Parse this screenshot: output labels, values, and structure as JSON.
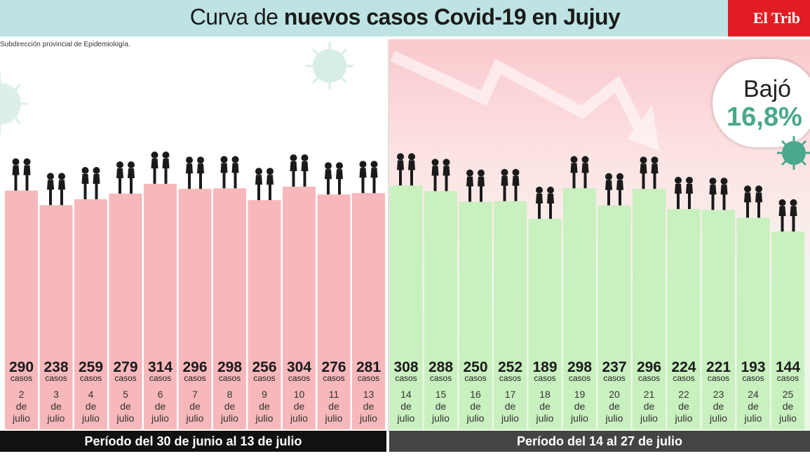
{
  "header": {
    "title_light": "Curva de ",
    "title_bold": "nuevos casos Covid-19 en Jujuy",
    "brand": "El Trib"
  },
  "source": "Subdirección provincial de Epidemiología.",
  "callout": {
    "label": "Bajó",
    "value": "16,8%"
  },
  "colors": {
    "header_bg": "#bfe3e3",
    "brand_bg": "#e31b23",
    "bar_pink": "#f7b8bb",
    "bar_green": "#c9f0bf",
    "accent_green": "#4aa88c"
  },
  "chart_data": {
    "type": "bar",
    "unit": "casos",
    "day_word_de": "de",
    "month": "julio",
    "periods": [
      {
        "label": "Período del 30 de junio al 13 de julio",
        "color": "#f7b8bb"
      },
      {
        "label": "Período del 14 al 27 de julio",
        "color": "#c9f0bf"
      }
    ],
    "bars": [
      {
        "day": "2",
        "value": 290,
        "period": 0
      },
      {
        "day": "3",
        "value": 238,
        "period": 0
      },
      {
        "day": "4",
        "value": 259,
        "period": 0
      },
      {
        "day": "5",
        "value": 279,
        "period": 0
      },
      {
        "day": "6",
        "value": 314,
        "period": 0
      },
      {
        "day": "7",
        "value": 296,
        "period": 0
      },
      {
        "day": "8",
        "value": 298,
        "period": 0
      },
      {
        "day": "9",
        "value": 256,
        "period": 0
      },
      {
        "day": "10",
        "value": 304,
        "period": 0
      },
      {
        "day": "11",
        "value": 276,
        "period": 0
      },
      {
        "day": "13",
        "value": 281,
        "period": 0
      },
      {
        "day": "14",
        "value": 308,
        "period": 1
      },
      {
        "day": "15",
        "value": 288,
        "period": 1
      },
      {
        "day": "16",
        "value": 250,
        "period": 1
      },
      {
        "day": "17",
        "value": 252,
        "period": 1
      },
      {
        "day": "18",
        "value": 189,
        "period": 1
      },
      {
        "day": "19",
        "value": 298,
        "period": 1
      },
      {
        "day": "20",
        "value": 237,
        "period": 1
      },
      {
        "day": "21",
        "value": 296,
        "period": 1
      },
      {
        "day": "22",
        "value": 224,
        "period": 1
      },
      {
        "day": "23",
        "value": 221,
        "period": 1
      },
      {
        "day": "24",
        "value": 193,
        "period": 1
      },
      {
        "day": "25",
        "value": 144,
        "period": 1
      }
    ]
  }
}
